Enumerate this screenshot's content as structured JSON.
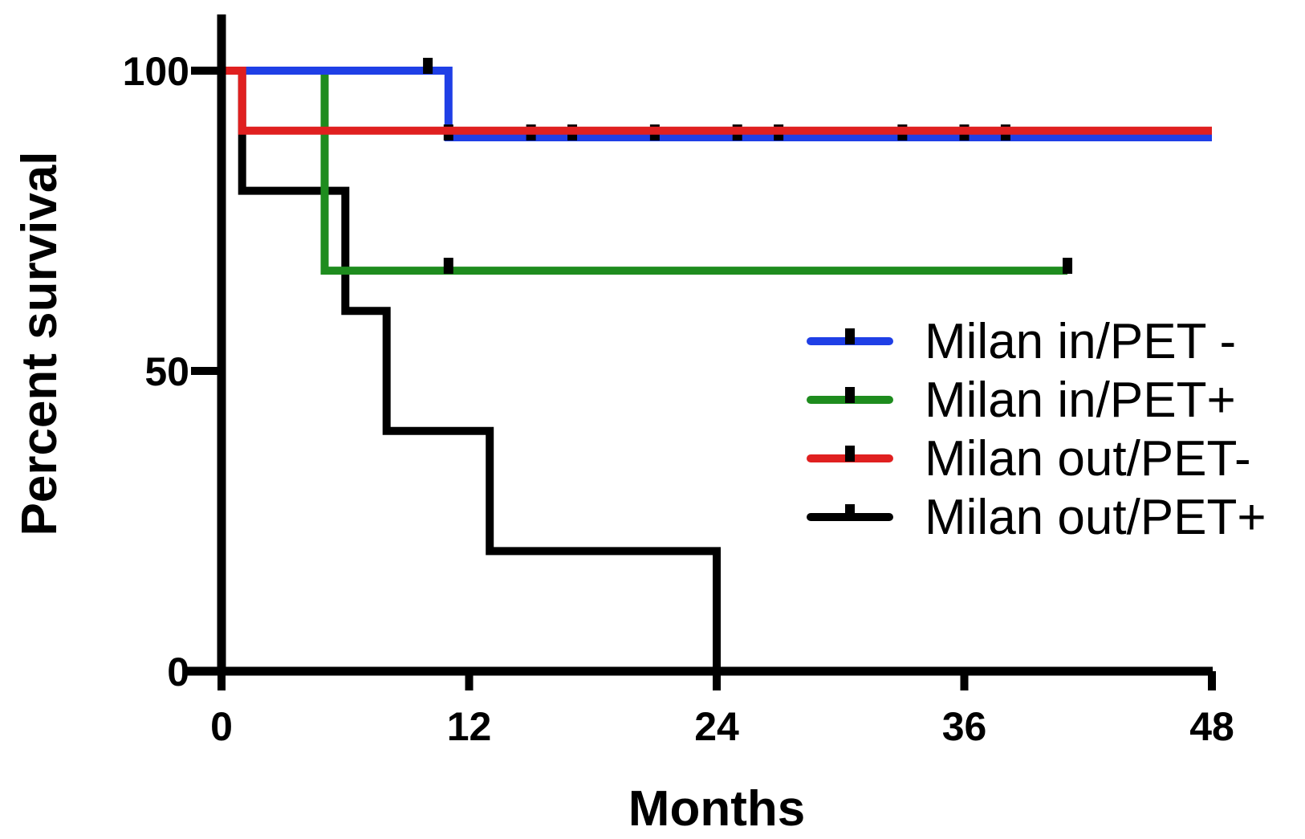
{
  "chart_data": {
    "type": "line",
    "step": true,
    "xlabel": "Months",
    "ylabel": "Percent survival",
    "xlim": [
      0,
      48
    ],
    "ylim": [
      0,
      100
    ],
    "x_ticks": [
      0,
      12,
      24,
      36,
      48
    ],
    "y_ticks": [
      0,
      50,
      100
    ],
    "x_tick_labels": [
      "0",
      "12",
      "24",
      "36",
      "48"
    ],
    "y_tick_labels": [
      "0",
      "50",
      "100"
    ],
    "legend_position": "right",
    "series": [
      {
        "name": "Milan in/PET -",
        "color": "#1f3fe6",
        "steps": [
          [
            0,
            100
          ],
          [
            11,
            100
          ],
          [
            11,
            88.9
          ],
          [
            48,
            88.9
          ]
        ],
        "censored": [
          [
            10,
            100
          ],
          [
            11,
            88.9
          ],
          [
            15,
            88.9
          ],
          [
            17,
            88.9
          ],
          [
            21,
            88.9
          ],
          [
            25,
            88.9
          ],
          [
            27,
            88.9
          ],
          [
            33,
            88.9
          ],
          [
            36,
            88.9
          ],
          [
            38,
            88.9
          ]
        ]
      },
      {
        "name": "Milan in/PET+",
        "color": "#1e8c1e",
        "steps": [
          [
            0,
            100
          ],
          [
            5,
            100
          ],
          [
            5,
            66.7
          ],
          [
            41,
            66.7
          ]
        ],
        "censored": [
          [
            11,
            66.7
          ],
          [
            41,
            66.7
          ]
        ]
      },
      {
        "name": "Milan out/PET-",
        "color": "#e02020",
        "steps": [
          [
            0,
            100
          ],
          [
            1,
            100
          ],
          [
            1,
            90
          ],
          [
            48,
            90
          ]
        ],
        "censored": []
      },
      {
        "name": "Milan out/PET+",
        "color": "#000000",
        "steps": [
          [
            0,
            100
          ],
          [
            1,
            100
          ],
          [
            1,
            80
          ],
          [
            6,
            80
          ],
          [
            6,
            60
          ],
          [
            8,
            60
          ],
          [
            8,
            40
          ],
          [
            13,
            40
          ],
          [
            13,
            20
          ],
          [
            24,
            20
          ],
          [
            24,
            0
          ]
        ],
        "censored": []
      }
    ]
  }
}
